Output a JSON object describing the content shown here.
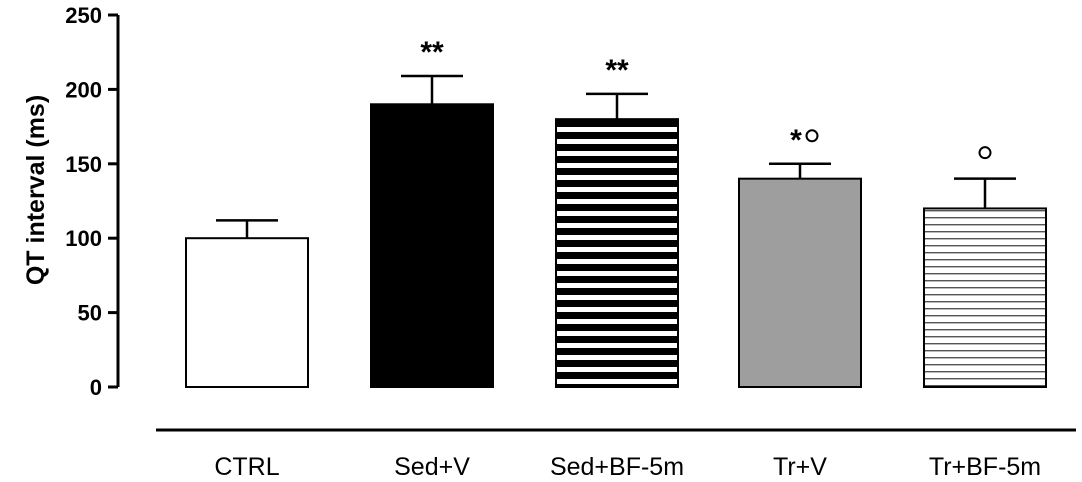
{
  "chart_data": {
    "type": "bar",
    "ylabel": "QT interval (ms)",
    "xlabel": "",
    "title": "",
    "ylim": [
      0,
      250
    ],
    "yticks": [
      0,
      50,
      100,
      150,
      200,
      250
    ],
    "categories": [
      "CTRL",
      "Sed+V",
      "Sed+BF-5m",
      "Tr+V",
      "Tr+BF-5m"
    ],
    "values": [
      100,
      190,
      180,
      140,
      120
    ],
    "errors": [
      12,
      19,
      17,
      10,
      20
    ],
    "fills": [
      "white",
      "black",
      "bold-horizontal-stripes",
      "gray",
      "fine-horizontal-stripes"
    ],
    "colors": {
      "black": "#000000",
      "gray": "#9e9e9e",
      "white": "#ffffff"
    },
    "annotations": [
      {
        "category": "Sed+V",
        "stars": "**",
        "circle": false
      },
      {
        "category": "Sed+BF-5m",
        "stars": "**",
        "circle": false
      },
      {
        "category": "Tr+V",
        "stars": "*",
        "circle": true
      },
      {
        "category": "Tr+BF-5m",
        "stars": "",
        "circle": true
      }
    ]
  }
}
